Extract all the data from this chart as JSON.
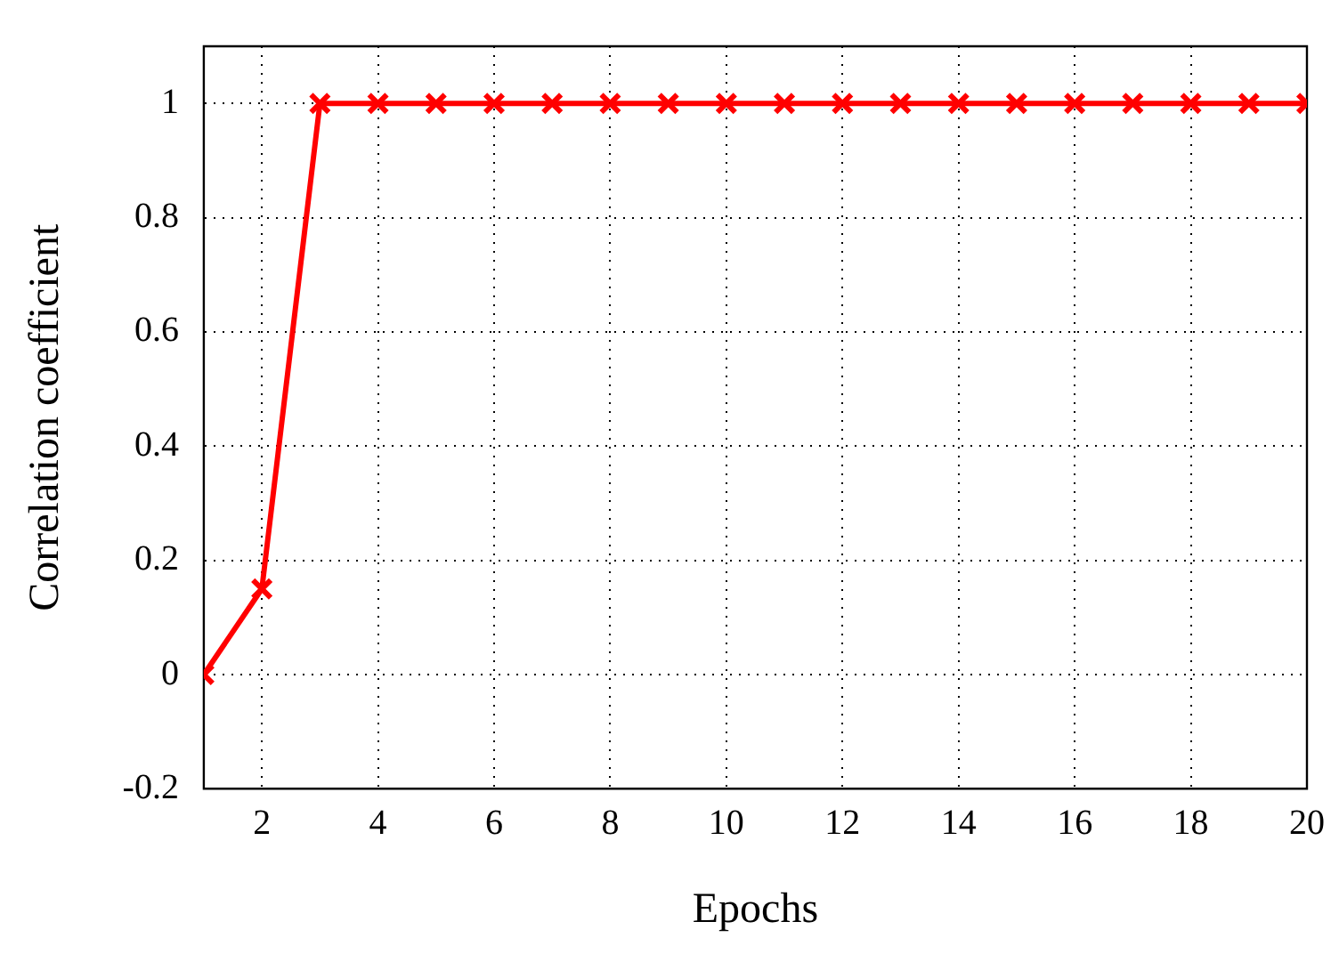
{
  "chart_data": {
    "type": "line",
    "xlabel": "Epochs",
    "ylabel": "Correlation coefficient",
    "x": [
      1,
      2,
      3,
      4,
      5,
      6,
      7,
      8,
      9,
      10,
      11,
      12,
      13,
      14,
      15,
      16,
      17,
      18,
      19,
      20
    ],
    "series": [
      {
        "color": "#ff0000",
        "values": [
          0,
          0.15,
          1,
          1,
          1,
          1,
          1,
          1,
          1,
          1,
          1,
          1,
          1,
          1,
          1,
          1,
          1,
          1,
          1,
          1
        ]
      }
    ],
    "xlim": [
      1,
      20
    ],
    "xticks": [
      2,
      4,
      6,
      8,
      10,
      12,
      14,
      16,
      18,
      20
    ],
    "ylim": [
      -0.2,
      1.1
    ],
    "yticks": [
      -0.2,
      0,
      0.2,
      0.4,
      0.6,
      0.8,
      1
    ],
    "grid": true,
    "legend": false,
    "marker": "cross",
    "line_style": "solid"
  }
}
